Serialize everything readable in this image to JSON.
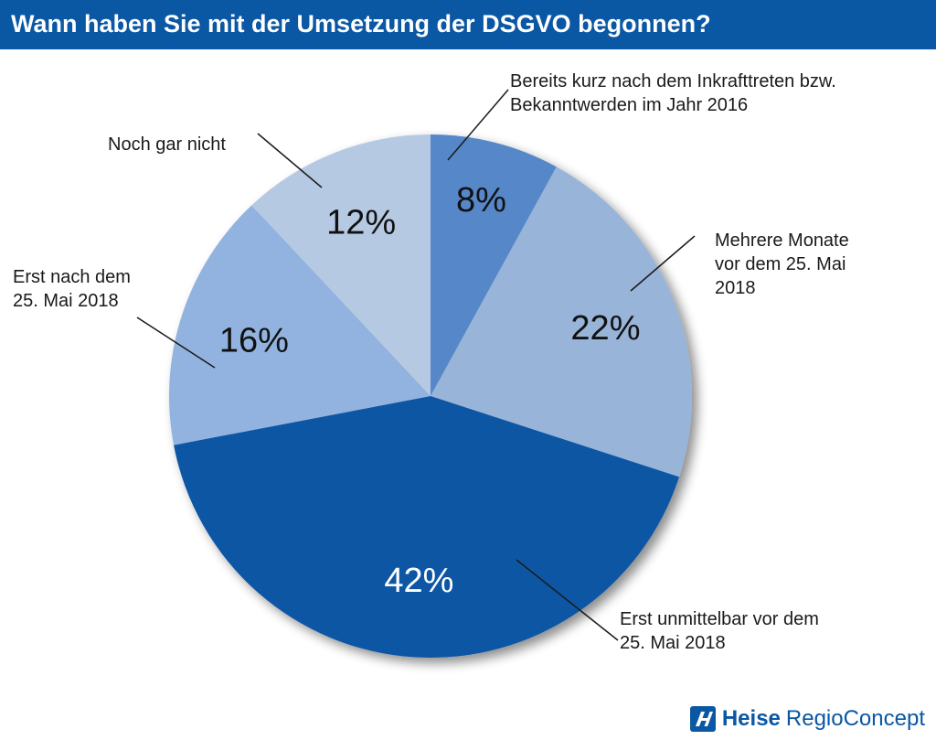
{
  "title": "Wann haben Sie mit der Umsetzung der DSGVO begonnen?",
  "colors": {
    "title_bar": "#0a57a4",
    "slice_8": "#5687c9",
    "slice_22": "#98b4d8",
    "slice_42": "#0b56a4",
    "slice_16": "#92b3df",
    "slice_12": "#b6c9e3"
  },
  "chart_data": {
    "type": "pie",
    "title": "Wann haben Sie mit der Umsetzung der DSGVO begonnen?",
    "unit": "%",
    "slices": [
      {
        "label_lines": [
          "Bereits kurz nach dem Inkrafttreten bzw.",
          "Bekanntwerden im Jahr 2016"
        ],
        "value": 8,
        "display": "8%",
        "color": "#5687c9",
        "text_color": "#111111"
      },
      {
        "label_lines": [
          "Mehrere Monate",
          "vor dem 25. Mai",
          "2018"
        ],
        "value": 22,
        "display": "22%",
        "color": "#98b4d8",
        "text_color": "#111111"
      },
      {
        "label_lines": [
          "Erst unmittelbar vor dem",
          "25. Mai 2018"
        ],
        "value": 42,
        "display": "42%",
        "color": "#0b56a4",
        "text_color": "#ffffff"
      },
      {
        "label_lines": [
          "Erst nach dem",
          "25. Mai 2018"
        ],
        "value": 16,
        "display": "16%",
        "color": "#92b3df",
        "text_color": "#111111"
      },
      {
        "label_lines": [
          "Noch gar nicht"
        ],
        "value": 12,
        "display": "12%",
        "color": "#b6c9e3",
        "text_color": "#111111"
      }
    ]
  },
  "logo": {
    "brand_bold": "Heise",
    "brand_light": "RegioConcept",
    "mark_icon": "heise-h-icon"
  }
}
